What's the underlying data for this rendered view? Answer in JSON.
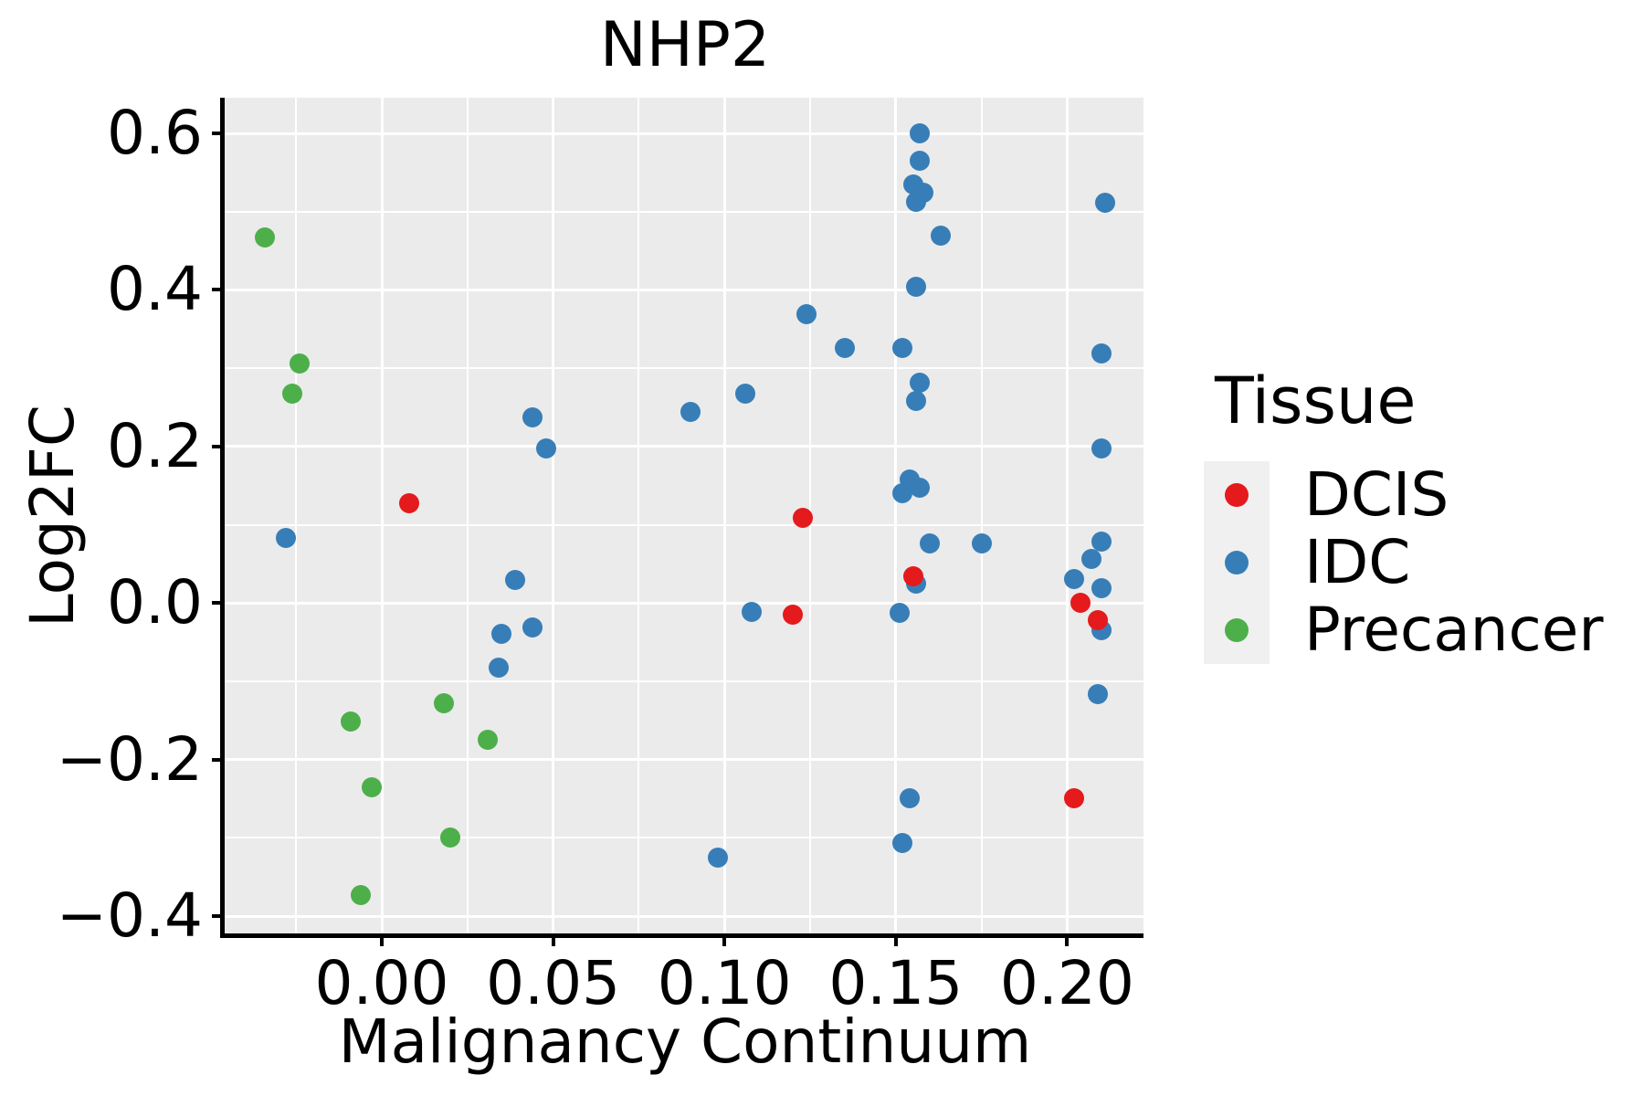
{
  "figure": {
    "title": "NHP2",
    "background": "#ffffff",
    "text_color": "#000000"
  },
  "chart_data": {
    "type": "scatter",
    "title": "NHP2",
    "xlabel": "Malignancy Continuum",
    "ylabel": "Log2FC",
    "xlim": [
      -0.046,
      0.222
    ],
    "ylim": [
      -0.423,
      0.645
    ],
    "grid": true,
    "panel_background": "#ebebeb",
    "gridline_color": "#ffffff",
    "axis_color": "#000000",
    "legend_position": "right",
    "x_ticks": [
      0.0,
      0.05,
      0.1,
      0.15,
      0.2
    ],
    "x_tick_labels": [
      "0.00",
      "0.05",
      "0.10",
      "0.15",
      "0.20"
    ],
    "x_minor_ticks": [
      -0.025,
      0.025,
      0.075,
      0.125,
      0.175
    ],
    "y_ticks": [
      0.6,
      0.4,
      0.2,
      0.0,
      -0.2,
      -0.4
    ],
    "y_tick_labels": [
      "0.6",
      "0.4",
      "0.2",
      "0.0",
      "−0.2",
      "−0.4"
    ],
    "y_minor_ticks": [
      0.5,
      0.3,
      0.1,
      -0.1,
      -0.3
    ],
    "point_radius_px": 11,
    "series": [
      {
        "name": "DCIS",
        "color": "#e41a1c",
        "points": [
          [
            0.008,
            0.128
          ],
          [
            0.123,
            0.109
          ],
          [
            0.12,
            -0.015
          ],
          [
            0.155,
            0.034
          ],
          [
            0.204,
            0.0
          ],
          [
            0.209,
            -0.022
          ],
          [
            0.202,
            -0.25
          ]
        ]
      },
      {
        "name": "IDC",
        "color": "#377eb8",
        "points": [
          [
            -0.028,
            0.083
          ],
          [
            0.039,
            0.029
          ],
          [
            0.035,
            -0.04
          ],
          [
            0.044,
            -0.031
          ],
          [
            0.034,
            -0.083
          ],
          [
            0.044,
            0.237
          ],
          [
            0.048,
            0.197
          ],
          [
            0.09,
            0.244
          ],
          [
            0.106,
            0.268
          ],
          [
            0.124,
            0.369
          ],
          [
            0.135,
            0.326
          ],
          [
            0.152,
            0.326
          ],
          [
            0.157,
            0.282
          ],
          [
            0.156,
            0.258
          ],
          [
            0.157,
            0.6
          ],
          [
            0.157,
            0.565
          ],
          [
            0.155,
            0.535
          ],
          [
            0.158,
            0.524
          ],
          [
            0.156,
            0.512
          ],
          [
            0.163,
            0.469
          ],
          [
            0.156,
            0.404
          ],
          [
            0.154,
            0.158
          ],
          [
            0.157,
            0.147
          ],
          [
            0.152,
            0.14
          ],
          [
            0.16,
            0.076
          ],
          [
            0.175,
            0.076
          ],
          [
            0.156,
            0.025
          ],
          [
            0.151,
            -0.013
          ],
          [
            0.108,
            -0.011
          ],
          [
            0.098,
            -0.325
          ],
          [
            0.154,
            -0.25
          ],
          [
            0.152,
            -0.307
          ],
          [
            0.211,
            0.511
          ],
          [
            0.21,
            0.319
          ],
          [
            0.21,
            0.197
          ],
          [
            0.21,
            0.078
          ],
          [
            0.207,
            0.056
          ],
          [
            0.202,
            0.03
          ],
          [
            0.21,
            0.019
          ],
          [
            0.21,
            -0.035
          ],
          [
            0.209,
            -0.116
          ]
        ]
      },
      {
        "name": "Precancer",
        "color": "#4daf4a",
        "points": [
          [
            -0.034,
            0.467
          ],
          [
            -0.024,
            0.306
          ],
          [
            -0.026,
            0.267
          ],
          [
            0.018,
            -0.128
          ],
          [
            -0.009,
            -0.151
          ],
          [
            0.031,
            -0.175
          ],
          [
            -0.003,
            -0.235
          ],
          [
            0.02,
            -0.3
          ],
          [
            -0.006,
            -0.373
          ]
        ]
      }
    ]
  },
  "legend": {
    "title": "Tissue",
    "key_background": "#f0f0f0",
    "items": [
      {
        "label": "DCIS",
        "color": "#e41a1c"
      },
      {
        "label": "IDC",
        "color": "#377eb8"
      },
      {
        "label": "Precancer",
        "color": "#4daf4a"
      }
    ]
  }
}
